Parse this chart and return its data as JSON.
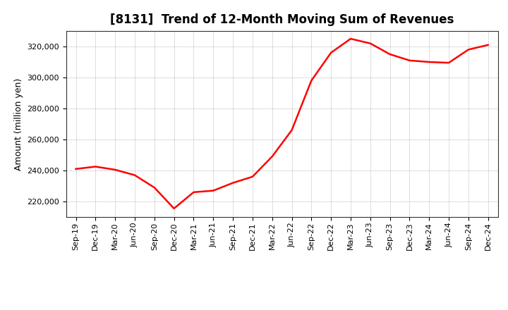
{
  "title": "[8131]  Trend of 12-Month Moving Sum of Revenues",
  "ylabel": "Amount (million yen)",
  "line_color": "#ff0000",
  "line_width": 1.8,
  "background_color": "#ffffff",
  "plot_bg_color": "#ffffff",
  "grid_color": "#999999",
  "xlabels": [
    "Sep-19",
    "Dec-19",
    "Mar-20",
    "Jun-20",
    "Sep-20",
    "Dec-20",
    "Mar-21",
    "Jun-21",
    "Sep-21",
    "Dec-21",
    "Mar-22",
    "Jun-22",
    "Sep-22",
    "Dec-22",
    "Mar-23",
    "Jun-23",
    "Sep-23",
    "Dec-23",
    "Mar-24",
    "Jun-24",
    "Sep-24",
    "Dec-24"
  ],
  "values": [
    241000,
    242500,
    240500,
    237000,
    229000,
    215500,
    226000,
    227000,
    232000,
    236000,
    249000,
    266000,
    298000,
    316000,
    325000,
    322000,
    315000,
    311000,
    310000,
    309500,
    318000,
    321000
  ],
  "ylim": [
    210000,
    330000
  ],
  "yticks": [
    220000,
    240000,
    260000,
    280000,
    300000,
    320000
  ],
  "title_fontsize": 12,
  "label_fontsize": 9,
  "tick_fontsize": 8
}
